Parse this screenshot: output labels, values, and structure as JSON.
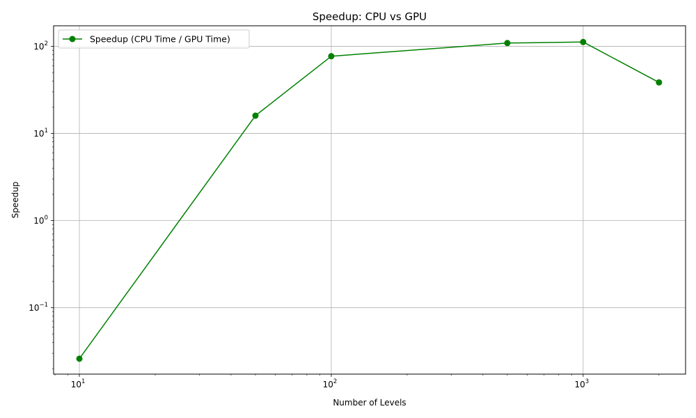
{
  "chart_data": {
    "type": "line",
    "title": "Speedup: CPU vs GPU",
    "xlabel": "Number of Levels",
    "ylabel": "Speedup",
    "xscale": "log",
    "yscale": "log",
    "xlim": [
      7.9,
      2550
    ],
    "ylim": [
      0.0173,
      172
    ],
    "x_ticks": [
      {
        "value": 10,
        "base": "10",
        "exp": "1"
      },
      {
        "value": 100,
        "base": "10",
        "exp": "2"
      },
      {
        "value": 1000,
        "base": "10",
        "exp": "3"
      }
    ],
    "y_ticks": [
      {
        "value": 0.1,
        "base": "10",
        "exp": "−1"
      },
      {
        "value": 1,
        "base": "10",
        "exp": "0"
      },
      {
        "value": 10,
        "base": "10",
        "exp": "1"
      },
      {
        "value": 100,
        "base": "10",
        "exp": "2"
      }
    ],
    "grid": true,
    "legend_position": "top-left",
    "series": [
      {
        "name": "Speedup (CPU Time / GPU Time)",
        "color": "#008000",
        "marker": "circle",
        "x": [
          10,
          50,
          100,
          500,
          1000,
          2000
        ],
        "y": [
          0.026,
          16,
          77,
          109,
          112,
          38.5
        ]
      }
    ]
  }
}
